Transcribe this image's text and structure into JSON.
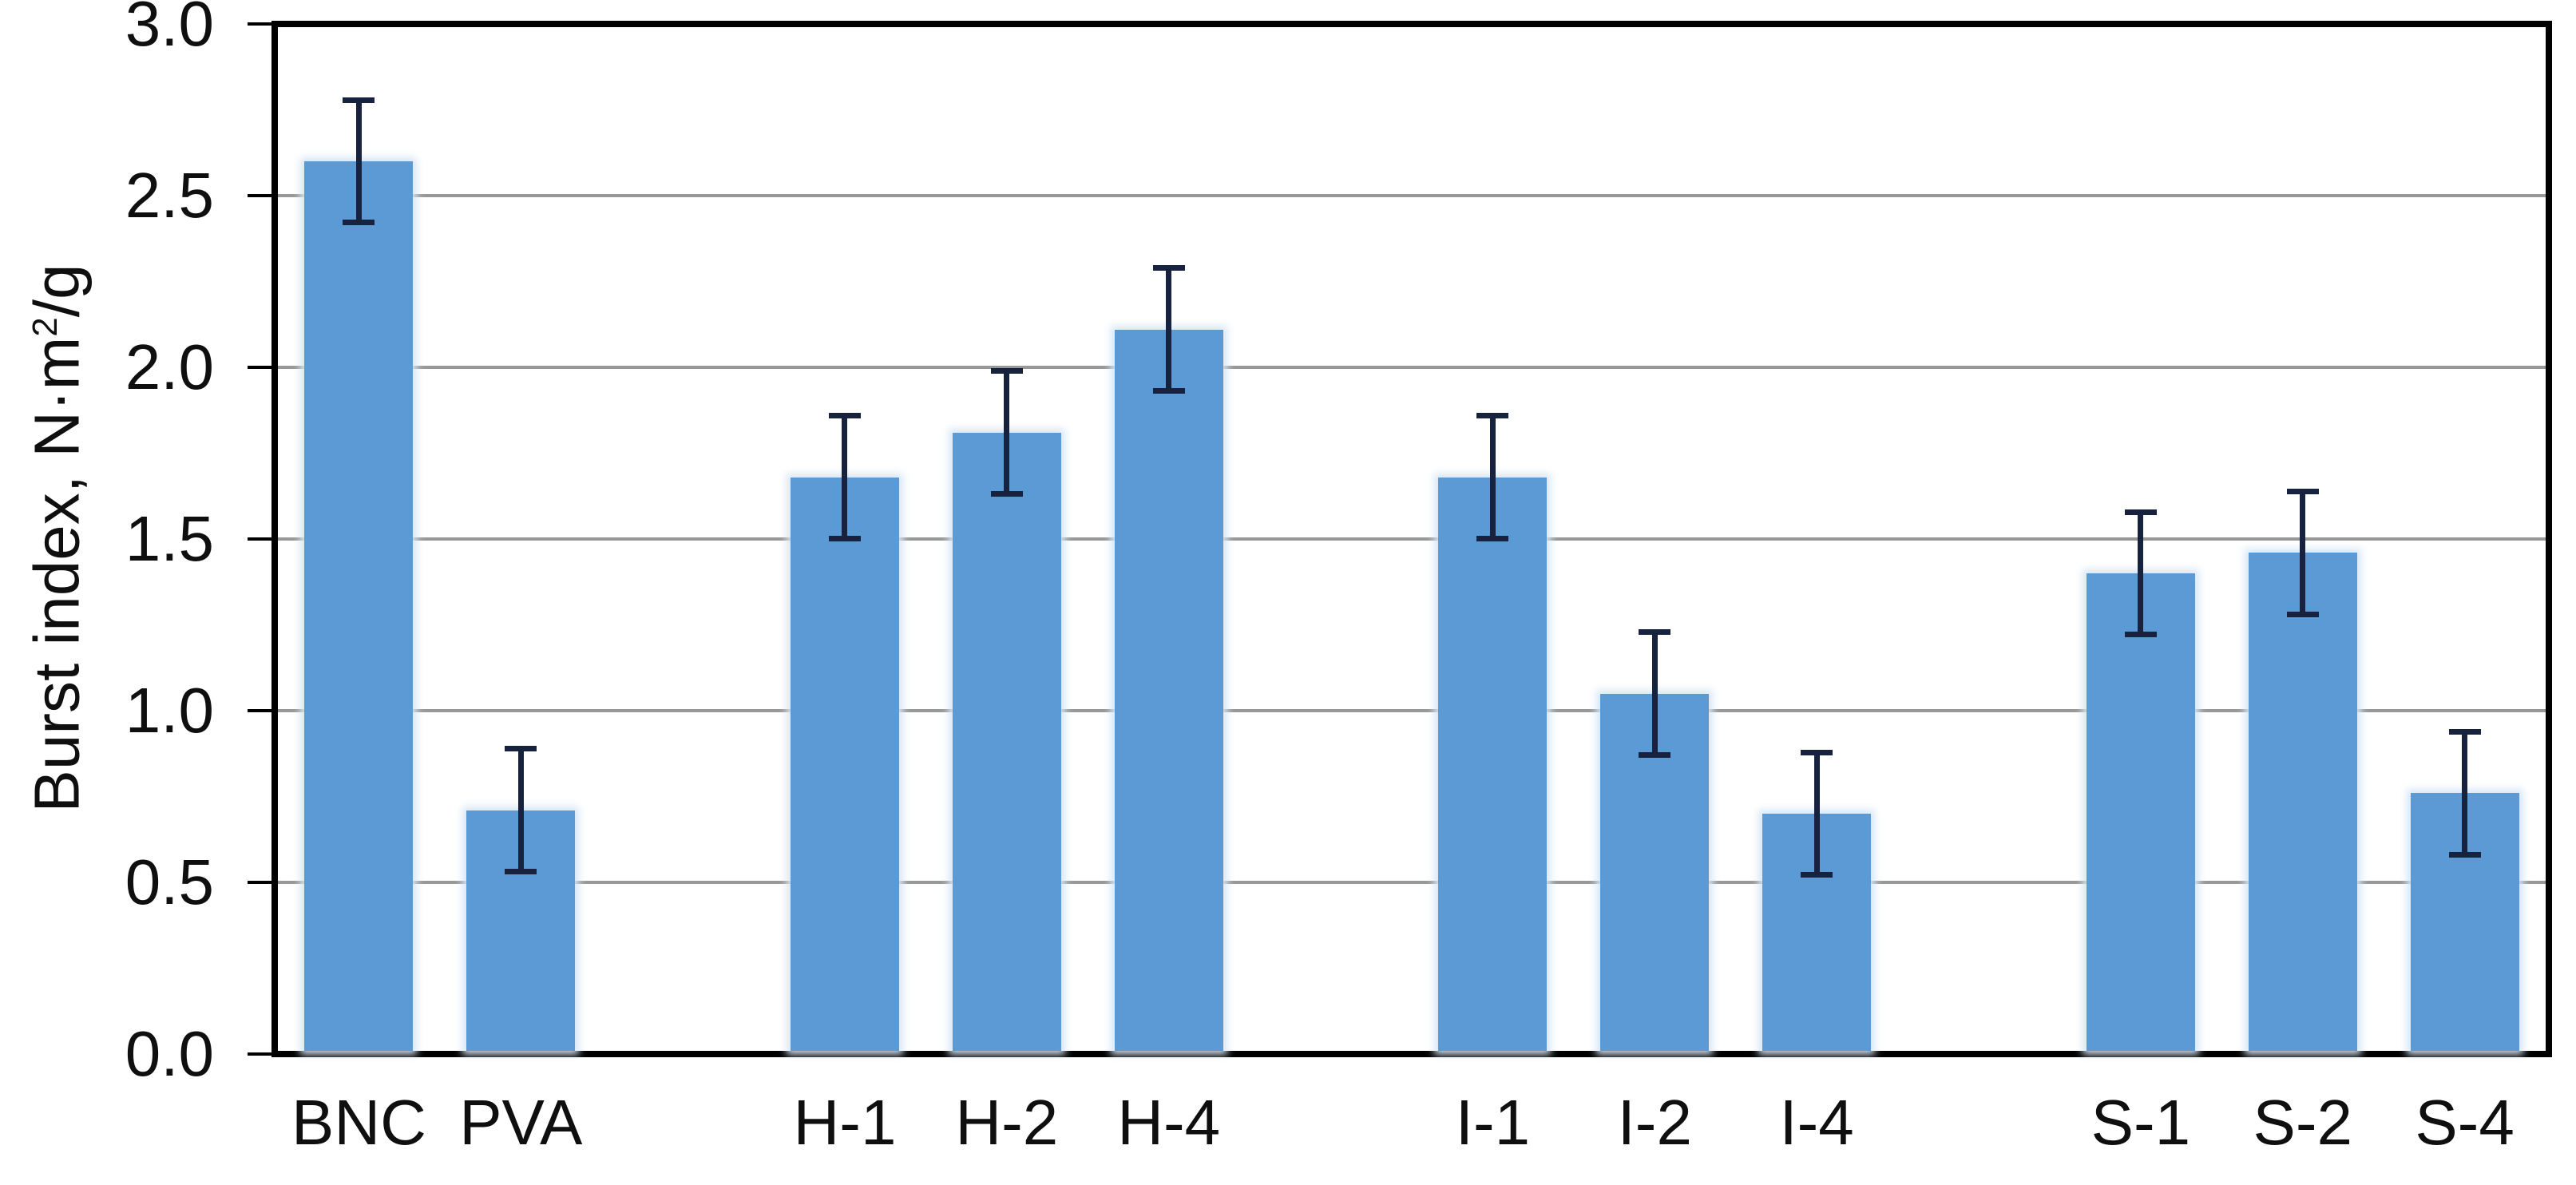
{
  "chart_data": {
    "type": "bar",
    "title": "",
    "xlabel": "",
    "ylabel": "Burst index, N·m²/g",
    "ylabel_parts": {
      "prefix": "Burst index, N·m",
      "sup": "2",
      "suffix": "/g"
    },
    "ylim": [
      0.0,
      3.0
    ],
    "ytick_step": 0.5,
    "yticks": [
      {
        "value": 3.0,
        "label": "3.0"
      },
      {
        "value": 2.5,
        "label": "2.5"
      },
      {
        "value": 2.0,
        "label": "2.0"
      },
      {
        "value": 1.5,
        "label": "1.5"
      },
      {
        "value": 1.0,
        "label": "1.0"
      },
      {
        "value": 0.5,
        "label": "0.5"
      },
      {
        "value": 0.0,
        "label": "0.0"
      }
    ],
    "grid": true,
    "legend": false,
    "n_slots": 14,
    "categories": [
      "BNC",
      "PVA",
      "H-1",
      "H-2",
      "H-4",
      "I-1",
      "I-2",
      "I-4",
      "S-1",
      "S-2",
      "S-4"
    ],
    "values": [
      2.6,
      0.71,
      1.68,
      1.81,
      2.11,
      1.68,
      1.05,
      0.7,
      1.4,
      1.46,
      0.76
    ],
    "errors": [
      0.18,
      0.18,
      0.18,
      0.18,
      0.18,
      0.18,
      0.18,
      0.18,
      0.18,
      0.18,
      0.18
    ],
    "bars": [
      {
        "label": "BNC",
        "slot": 0,
        "value": 2.6,
        "error": 0.18
      },
      {
        "label": "PVA",
        "slot": 1,
        "value": 0.71,
        "error": 0.18
      },
      {
        "label": "H-1",
        "slot": 3,
        "value": 1.68,
        "error": 0.18
      },
      {
        "label": "H-2",
        "slot": 4,
        "value": 1.81,
        "error": 0.18
      },
      {
        "label": "H-4",
        "slot": 5,
        "value": 2.11,
        "error": 0.18
      },
      {
        "label": "I-1",
        "slot": 7,
        "value": 1.68,
        "error": 0.18
      },
      {
        "label": "I-2",
        "slot": 8,
        "value": 1.05,
        "error": 0.18
      },
      {
        "label": "I-4",
        "slot": 9,
        "value": 0.7,
        "error": 0.18
      },
      {
        "label": "S-1",
        "slot": 11,
        "value": 1.4,
        "error": 0.18
      },
      {
        "label": "S-2",
        "slot": 12,
        "value": 1.46,
        "error": 0.18
      },
      {
        "label": "S-4",
        "slot": 13,
        "value": 0.76,
        "error": 0.18
      }
    ],
    "colors": {
      "bar": "#5B9AD5",
      "bar_halo": "#D6E6F5",
      "error_bar": "#17233E",
      "gridline": "#989898",
      "axis": "#000000",
      "text": "#0F0F0F",
      "background": "#FFFFFF"
    }
  }
}
